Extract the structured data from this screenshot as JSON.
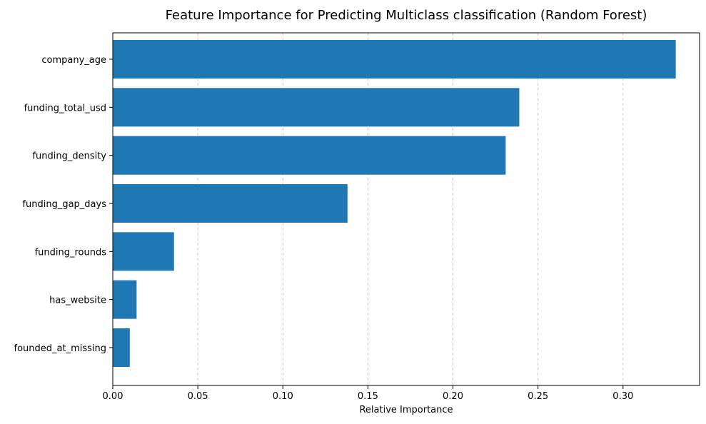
{
  "chart_data": {
    "type": "bar",
    "orientation": "horizontal",
    "title": "Feature Importance for Predicting Multiclass classification (Random Forest)",
    "xlabel": "Relative Importance",
    "ylabel": "",
    "categories": [
      "company_age",
      "funding_total_usd",
      "funding_density",
      "funding_gap_days",
      "funding_rounds",
      "has_website",
      "founded_at_missing"
    ],
    "values": [
      0.331,
      0.239,
      0.231,
      0.138,
      0.036,
      0.014,
      0.01
    ],
    "xlim": [
      0,
      0.345
    ],
    "xticks": [
      0.0,
      0.05,
      0.1,
      0.15,
      0.2,
      0.25,
      0.3
    ],
    "xtick_labels": [
      "0.00",
      "0.05",
      "0.10",
      "0.15",
      "0.20",
      "0.25",
      "0.30"
    ],
    "grid": {
      "x": true,
      "y": false,
      "style": "dashed"
    },
    "bar_color": "#1f77b4",
    "grid_color": "#b0b0b0",
    "axis_color": "#000000"
  }
}
